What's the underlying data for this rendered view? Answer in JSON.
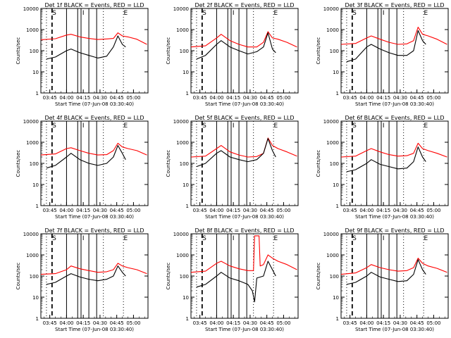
{
  "figure": {
    "background": "#ffffff",
    "event_color": "#000000",
    "lld_color": "#ff0000"
  },
  "chart_data": [
    {
      "type": "line",
      "title": "Det 1f BLACK = Events, RED = LLD",
      "xlabel": "Start Time (07-Jun-08 03:30:40)",
      "ylabel": "Counts/sec",
      "ylog": true,
      "ylim": [
        1,
        10000
      ],
      "xlim": [
        "03:37",
        "05:13"
      ],
      "y_ticks": [
        "1",
        "10",
        "100",
        "1000",
        "10000"
      ],
      "x_ticks": [
        "03:45",
        "04:00",
        "04:15",
        "04:30",
        "04:45",
        "05:00"
      ],
      "markers": [
        "S",
        "",
        "I",
        "",
        "E"
      ],
      "series": [
        {
          "color": "#000000",
          "x": [
            "03:42",
            "03:50",
            "04:00",
            "04:04",
            "04:12",
            "04:20",
            "04:28",
            "04:36",
            "04:42",
            "04:46",
            "04:50",
            "04:53"
          ],
          "values": [
            40,
            50,
            100,
            120,
            80,
            60,
            45,
            55,
            150,
            500,
            200,
            150
          ]
        },
        {
          "color": "#ff0000",
          "x": [
            "03:37",
            "03:50",
            "04:00",
            "04:04",
            "04:12",
            "04:20",
            "04:28",
            "04:36",
            "04:42",
            "04:46",
            "04:50",
            "04:55",
            "05:03",
            "05:12"
          ],
          "values": [
            330,
            370,
            550,
            600,
            450,
            380,
            340,
            360,
            380,
            700,
            500,
            450,
            350,
            200
          ]
        }
      ]
    },
    {
      "type": "line",
      "title": "Det 2f BLACK = Events, RED = LLD",
      "xlabel": "Start Time (07-Jun-08 03:30:40)",
      "ylabel": "Counts/sec",
      "ylog": true,
      "ylim": [
        1,
        10000
      ],
      "xlim": [
        "03:37",
        "05:13"
      ],
      "y_ticks": [
        "1",
        "10",
        "100",
        "1000",
        "10000"
      ],
      "x_ticks": [
        "03:45",
        "04:00",
        "04:15",
        "04:30",
        "04:45",
        "05:00"
      ],
      "markers": [
        "S",
        "",
        "I",
        "",
        "E"
      ],
      "series": [
        {
          "color": "#000000",
          "x": [
            "03:42",
            "03:50",
            "04:00",
            "04:04",
            "04:12",
            "04:20",
            "04:28",
            "04:36",
            "04:42",
            "04:46",
            "04:50",
            "04:53"
          ],
          "values": [
            40,
            60,
            200,
            300,
            150,
            100,
            70,
            90,
            150,
            700,
            120,
            80
          ]
        },
        {
          "color": "#ff0000",
          "x": [
            "03:37",
            "03:50",
            "04:00",
            "04:04",
            "04:12",
            "04:20",
            "04:28",
            "04:36",
            "04:42",
            "04:46",
            "04:50",
            "04:55",
            "05:03",
            "05:12"
          ],
          "values": [
            150,
            170,
            400,
            600,
            300,
            200,
            150,
            150,
            250,
            800,
            400,
            350,
            250,
            150
          ]
        }
      ]
    },
    {
      "type": "line",
      "title": "Det 3f BLACK = Events, RED = LLD",
      "xlabel": "Start Time (07-Jun-08 03:30:40)",
      "ylabel": "Counts/sec",
      "ylog": true,
      "ylim": [
        1,
        10000
      ],
      "xlim": [
        "03:37",
        "05:13"
      ],
      "y_ticks": [
        "1",
        "10",
        "100",
        "1000",
        "10000"
      ],
      "x_ticks": [
        "03:45",
        "04:00",
        "04:15",
        "04:30",
        "04:45",
        "05:00"
      ],
      "markers": [
        "S",
        "",
        "I",
        "",
        "E"
      ],
      "series": [
        {
          "color": "#000000",
          "x": [
            "03:42",
            "03:50",
            "04:00",
            "04:04",
            "04:12",
            "04:20",
            "04:28",
            "04:36",
            "04:42",
            "04:46",
            "04:50",
            "04:53"
          ],
          "values": [
            30,
            40,
            150,
            200,
            120,
            80,
            60,
            60,
            100,
            900,
            300,
            200
          ]
        },
        {
          "color": "#ff0000",
          "x": [
            "03:37",
            "03:50",
            "04:00",
            "04:04",
            "04:12",
            "04:20",
            "04:28",
            "04:36",
            "04:42",
            "04:46",
            "04:50",
            "04:55",
            "05:03",
            "05:12"
          ],
          "values": [
            200,
            220,
            400,
            500,
            350,
            250,
            200,
            210,
            300,
            1300,
            600,
            500,
            350,
            200
          ]
        }
      ]
    },
    {
      "type": "line",
      "title": "Det 4f BLACK = Events, RED = LLD",
      "xlabel": "Start Time (07-Jun-08 03:30:40)",
      "ylabel": "Counts/sec",
      "ylog": true,
      "ylim": [
        1,
        10000
      ],
      "xlim": [
        "03:37",
        "05:13"
      ],
      "y_ticks": [
        "1",
        "10",
        "100",
        "1000",
        "10000"
      ],
      "x_ticks": [
        "03:45",
        "04:00",
        "04:15",
        "04:30",
        "04:45",
        "05:00"
      ],
      "markers": [
        "S",
        "",
        "I",
        "",
        "E"
      ],
      "series": [
        {
          "color": "#000000",
          "x": [
            "03:42",
            "03:50",
            "04:00",
            "04:04",
            "04:12",
            "04:20",
            "04:28",
            "04:36",
            "04:42",
            "04:46",
            "04:50",
            "04:53"
          ],
          "values": [
            60,
            80,
            200,
            300,
            150,
            100,
            80,
            100,
            200,
            700,
            300,
            150
          ]
        },
        {
          "color": "#ff0000",
          "x": [
            "03:37",
            "03:50",
            "04:00",
            "04:04",
            "04:12",
            "04:20",
            "04:28",
            "04:36",
            "04:42",
            "04:46",
            "04:50",
            "04:55",
            "05:03",
            "05:12"
          ],
          "values": [
            250,
            280,
            500,
            550,
            400,
            300,
            250,
            260,
            400,
            900,
            600,
            500,
            400,
            250
          ]
        }
      ]
    },
    {
      "type": "line",
      "title": "Det 5f BLACK = Events, RED = LLD",
      "xlabel": "Start Time (07-Jun-08 03:30:40)",
      "ylabel": "Counts/sec",
      "ylog": true,
      "ylim": [
        1,
        10000
      ],
      "xlim": [
        "03:37",
        "05:13"
      ],
      "y_ticks": [
        "1",
        "10",
        "100",
        "1000",
        "10000"
      ],
      "x_ticks": [
        "03:45",
        "04:00",
        "04:15",
        "04:30",
        "04:45",
        "05:00"
      ],
      "markers": [
        "S",
        "",
        "I",
        "",
        "E"
      ],
      "series": [
        {
          "color": "#000000",
          "x": [
            "03:42",
            "03:50",
            "04:00",
            "04:04",
            "04:12",
            "04:20",
            "04:28",
            "04:36",
            "04:42",
            "04:46",
            "04:50",
            "04:53"
          ],
          "values": [
            70,
            100,
            300,
            400,
            200,
            150,
            120,
            150,
            300,
            1500,
            400,
            200
          ]
        },
        {
          "color": "#ff0000",
          "x": [
            "03:37",
            "03:50",
            "04:00",
            "04:04",
            "04:12",
            "04:20",
            "04:28",
            "04:36",
            "04:42",
            "04:46",
            "04:50",
            "04:55",
            "05:03",
            "05:12"
          ],
          "values": [
            200,
            220,
            500,
            700,
            350,
            250,
            200,
            210,
            300,
            1600,
            700,
            500,
            350,
            220
          ]
        }
      ]
    },
    {
      "type": "line",
      "title": "Det 6f BLACK = Events, RED = LLD",
      "xlabel": "Start Time (07-Jun-08 03:30:40)",
      "ylabel": "Counts/sec",
      "ylog": true,
      "ylim": [
        1,
        10000
      ],
      "xlim": [
        "03:37",
        "05:13"
      ],
      "y_ticks": [
        "1",
        "10",
        "100",
        "1000",
        "10000"
      ],
      "x_ticks": [
        "03:45",
        "04:00",
        "04:15",
        "04:30",
        "04:45",
        "05:00"
      ],
      "markers": [
        "S",
        "",
        "I",
        "",
        "E"
      ],
      "series": [
        {
          "color": "#000000",
          "x": [
            "03:42",
            "03:50",
            "04:00",
            "04:04",
            "04:12",
            "04:20",
            "04:28",
            "04:36",
            "04:42",
            "04:46",
            "04:50",
            "04:53"
          ],
          "values": [
            40,
            50,
            100,
            150,
            90,
            70,
            55,
            60,
            120,
            600,
            200,
            120
          ]
        },
        {
          "color": "#ff0000",
          "x": [
            "03:37",
            "03:50",
            "04:00",
            "04:04",
            "04:12",
            "04:20",
            "04:28",
            "04:36",
            "04:42",
            "04:46",
            "04:50",
            "04:55",
            "05:03",
            "05:12"
          ],
          "values": [
            200,
            220,
            400,
            500,
            350,
            260,
            220,
            230,
            300,
            900,
            500,
            400,
            300,
            200
          ]
        }
      ]
    },
    {
      "type": "line",
      "title": "Det 7f BLACK = Events, RED = LLD",
      "xlabel": "Start Time (07-Jun-08 03:30:40)",
      "ylabel": "Counts/sec",
      "ylog": true,
      "ylim": [
        1,
        10000
      ],
      "xlim": [
        "03:37",
        "05:13"
      ],
      "y_ticks": [
        "1",
        "10",
        "100",
        "1000",
        "10000"
      ],
      "x_ticks": [
        "03:45",
        "04:00",
        "04:15",
        "04:30",
        "04:45",
        "05:00"
      ],
      "markers": [
        "S",
        "",
        "I",
        "",
        "E"
      ],
      "series": [
        {
          "color": "#000000",
          "x": [
            "03:42",
            "03:50",
            "04:00",
            "04:04",
            "04:12",
            "04:20",
            "04:28",
            "04:36",
            "04:42",
            "04:46",
            "04:50",
            "04:53"
          ],
          "values": [
            40,
            50,
            100,
            130,
            90,
            70,
            60,
            70,
            100,
            300,
            150,
            100
          ]
        },
        {
          "color": "#ff0000",
          "x": [
            "03:37",
            "03:50",
            "04:00",
            "04:04",
            "04:12",
            "04:20",
            "04:28",
            "04:36",
            "04:42",
            "04:46",
            "04:50",
            "04:55",
            "05:03",
            "05:12"
          ],
          "values": [
            120,
            130,
            200,
            300,
            220,
            180,
            150,
            160,
            200,
            400,
            300,
            250,
            200,
            130
          ]
        }
      ]
    },
    {
      "type": "line",
      "title": "Det 8f BLACK = Events, RED = LLD",
      "xlabel": "Start Time (07-Jun-08 03:30:40)",
      "ylabel": "Counts/sec",
      "ylog": true,
      "ylim": [
        1,
        10000
      ],
      "xlim": [
        "03:37",
        "05:13"
      ],
      "y_ticks": [
        "1",
        "10",
        "100",
        "1000",
        "10000"
      ],
      "x_ticks": [
        "03:45",
        "04:00",
        "04:15",
        "04:30",
        "04:45",
        "05:00"
      ],
      "markers": [
        "S",
        "",
        "I",
        "",
        "E"
      ],
      "series": [
        {
          "color": "#000000",
          "x": [
            "03:42",
            "03:50",
            "04:00",
            "04:04",
            "04:12",
            "04:20",
            "04:28",
            "04:32",
            "04:34",
            "04:36",
            "04:42",
            "04:46",
            "04:50",
            "04:53"
          ],
          "values": [
            30,
            40,
            100,
            150,
            80,
            60,
            40,
            20,
            6,
            80,
            100,
            500,
            200,
            100
          ]
        },
        {
          "color": "#ff0000",
          "x": [
            "03:37",
            "03:50",
            "04:00",
            "04:04",
            "04:12",
            "04:20",
            "04:28",
            "04:33",
            "04:34",
            "04:38",
            "04:39",
            "04:42",
            "04:46",
            "04:50",
            "04:55",
            "05:03",
            "05:12"
          ],
          "values": [
            150,
            170,
            400,
            500,
            300,
            220,
            180,
            180,
            8000,
            8000,
            300,
            350,
            1000,
            700,
            500,
            350,
            200
          ]
        }
      ]
    },
    {
      "type": "line",
      "title": "Det 9f BLACK = Events, RED = LLD",
      "xlabel": "Start Time (07-Jun-08 03:30:40)",
      "ylabel": "Counts/sec",
      "ylog": true,
      "ylim": [
        1,
        10000
      ],
      "xlim": [
        "03:37",
        "05:13"
      ],
      "y_ticks": [
        "1",
        "10",
        "100",
        "1000",
        "10000"
      ],
      "x_ticks": [
        "03:45",
        "04:00",
        "04:15",
        "04:30",
        "04:45",
        "05:00"
      ],
      "markers": [
        "S",
        "",
        "I",
        "",
        "E"
      ],
      "series": [
        {
          "color": "#000000",
          "x": [
            "03:42",
            "03:50",
            "04:00",
            "04:04",
            "04:12",
            "04:20",
            "04:28",
            "04:36",
            "04:42",
            "04:46",
            "04:50",
            "04:53"
          ],
          "values": [
            40,
            50,
            100,
            150,
            90,
            70,
            55,
            60,
            120,
            600,
            200,
            120
          ]
        },
        {
          "color": "#ff0000",
          "x": [
            "03:37",
            "03:50",
            "04:00",
            "04:04",
            "04:12",
            "04:20",
            "04:28",
            "04:36",
            "04:42",
            "04:46",
            "04:50",
            "04:55",
            "05:03",
            "05:12"
          ],
          "values": [
            120,
            140,
            250,
            350,
            250,
            200,
            170,
            180,
            250,
            700,
            400,
            300,
            230,
            150
          ]
        }
      ]
    }
  ]
}
